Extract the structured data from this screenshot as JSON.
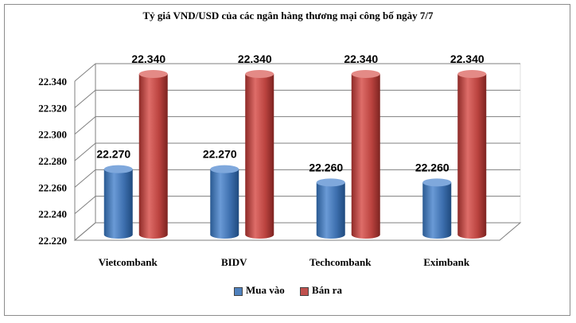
{
  "chart_data": {
    "type": "bar",
    "title": "Tỷ giá VND/USD của các ngân hàng thương mại công bố ngày 7/7",
    "categories": [
      "Vietcombank",
      "BIDV",
      "Techcombank",
      "Eximbank"
    ],
    "series": [
      {
        "name": "Mua vào",
        "values": [
          22270,
          22270,
          22260,
          22260
        ],
        "labels": [
          "22.270",
          "22.270",
          "22.260",
          "22.260"
        ],
        "color": "#4f81bd"
      },
      {
        "name": "Bán ra",
        "values": [
          22340,
          22340,
          22340,
          22340
        ],
        "labels": [
          "22.340",
          "22.340",
          "22.340",
          "22.340"
        ],
        "color": "#c0504d"
      }
    ],
    "ylim": [
      22220,
      22340
    ],
    "yticks": [
      22220,
      22240,
      22260,
      22280,
      22300,
      22320,
      22340
    ],
    "ytick_labels": [
      "22.220",
      "22.240",
      "22.260",
      "22.280",
      "22.300",
      "22.320",
      "22.340"
    ],
    "grid": true,
    "legend": "bottom",
    "style": "3d-cylinder"
  }
}
